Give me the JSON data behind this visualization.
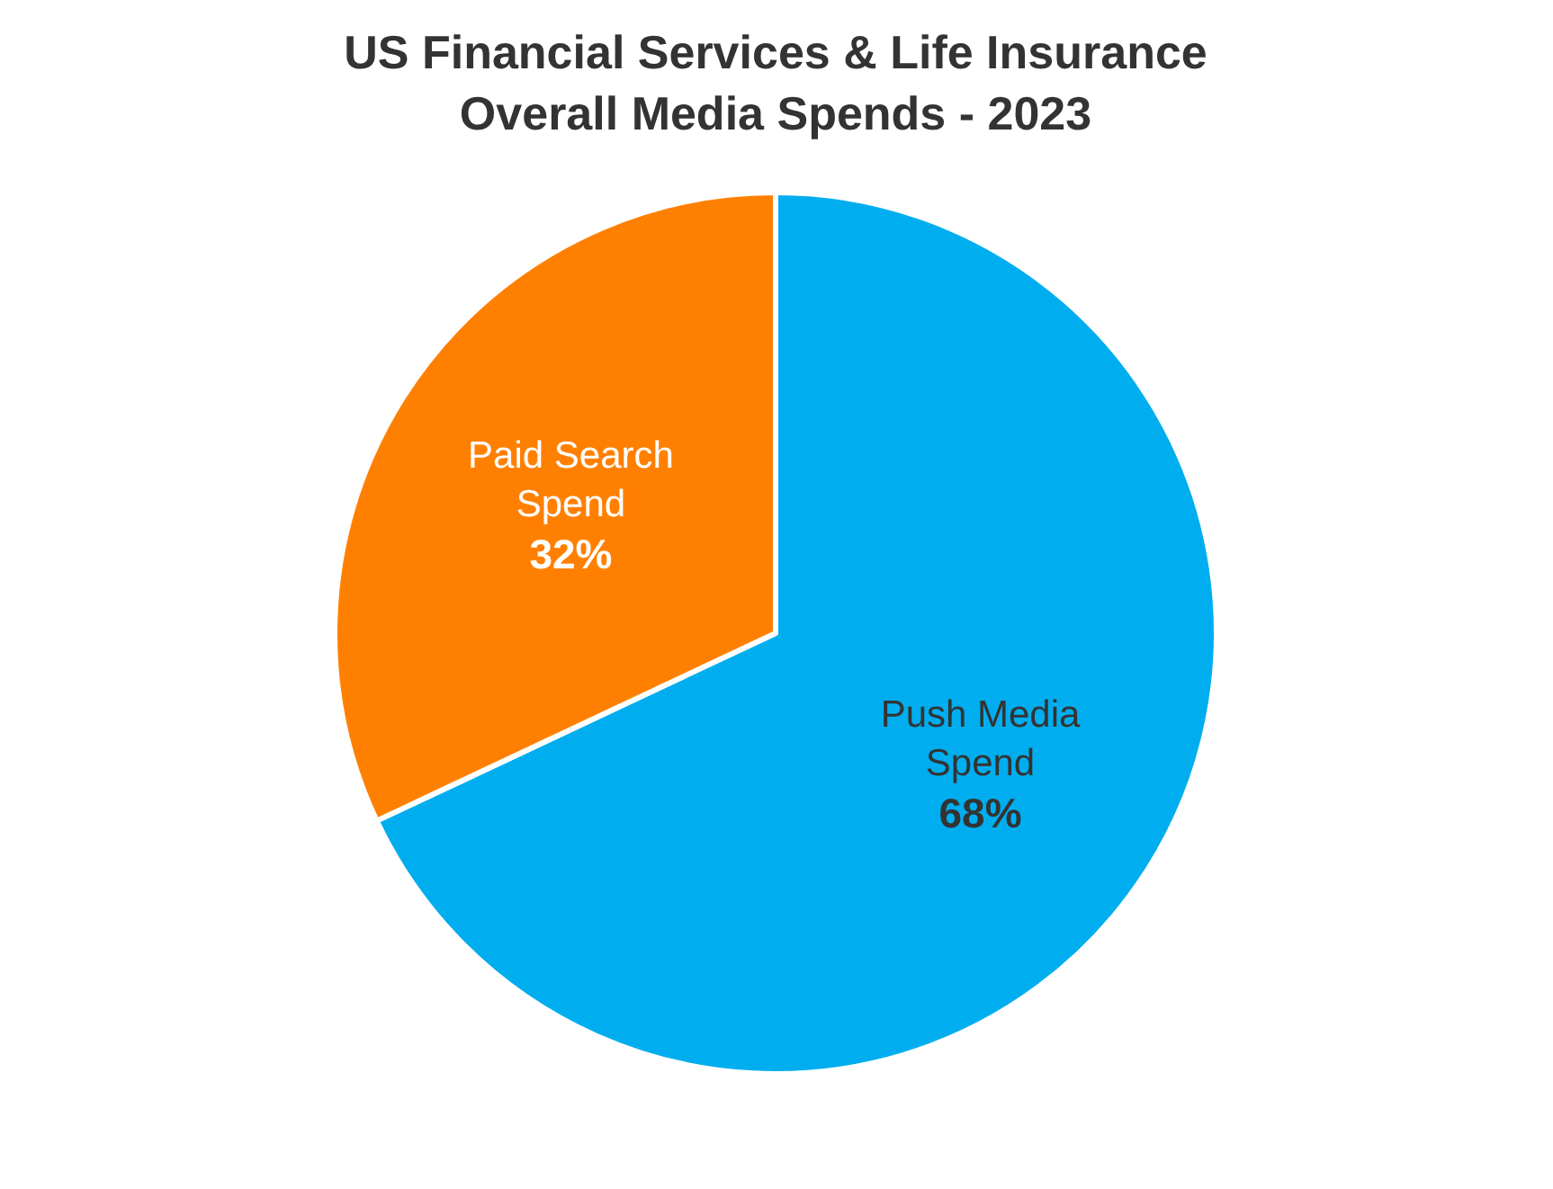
{
  "chart_data": {
    "type": "pie",
    "title": "US Financial Services & Life Insurance Overall Media Spends - 2023",
    "categories": [
      "Push Media Spend",
      "Paid Search Spend"
    ],
    "values": [
      68,
      32
    ],
    "colors": [
      "#00aeef",
      "#ff8000"
    ],
    "value_labels": [
      "68%",
      "32%"
    ]
  }
}
